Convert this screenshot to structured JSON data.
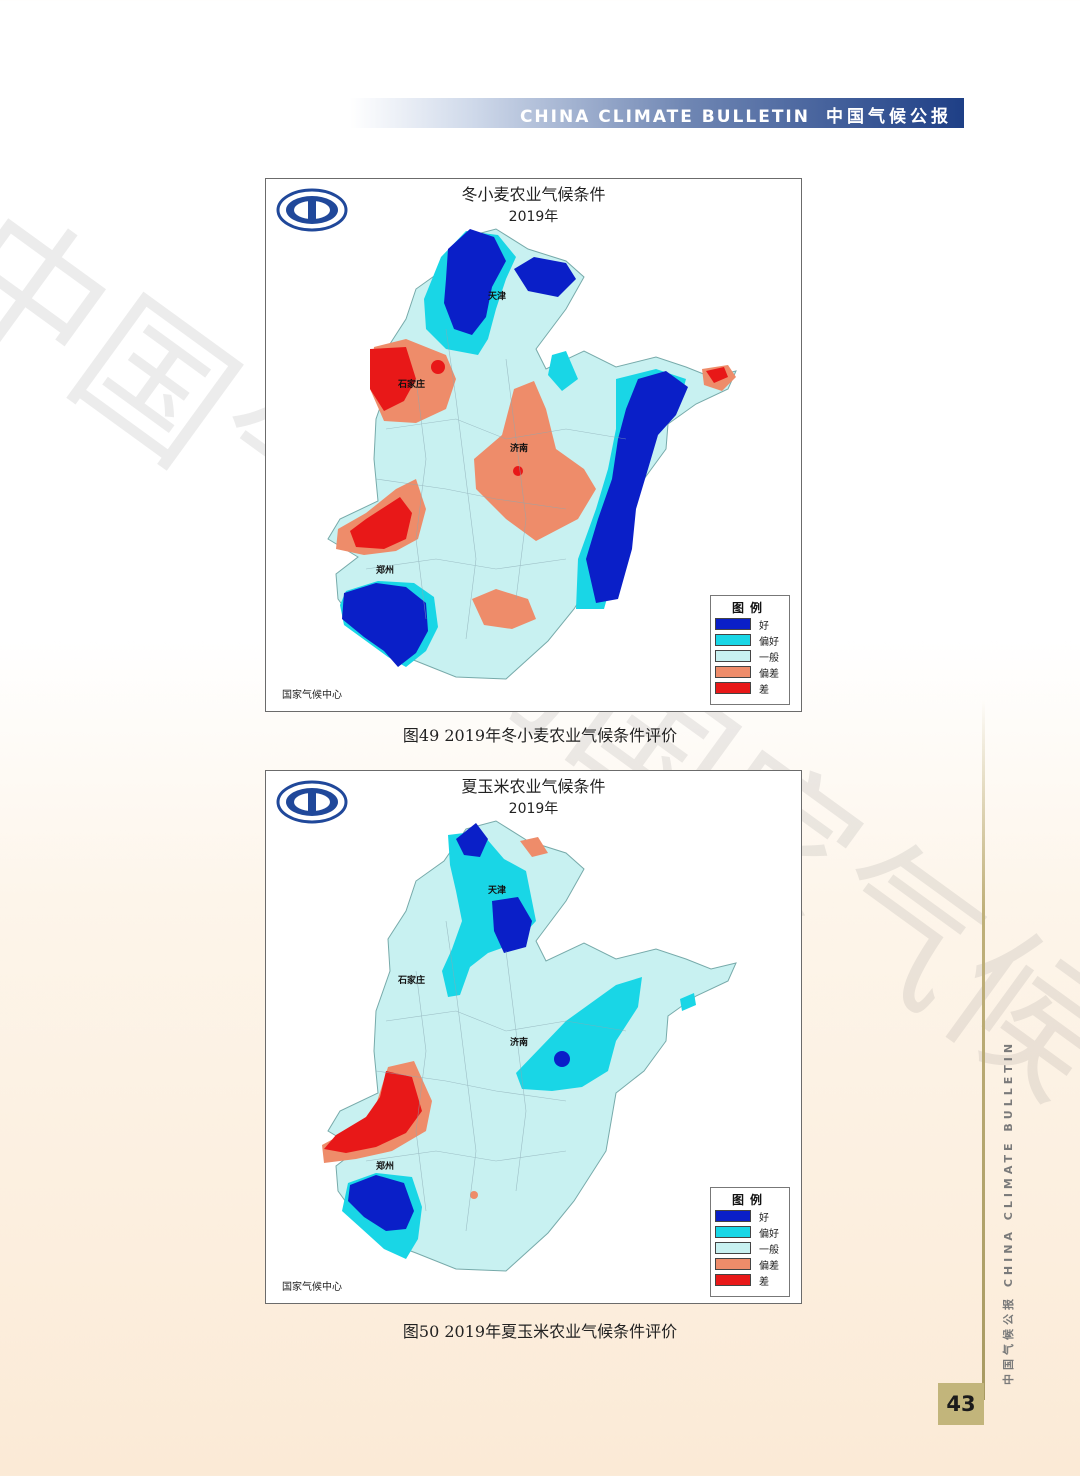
{
  "header": {
    "title_en": "CHINA CLIMATE BULLETIN",
    "title_cn": "中国气候公报"
  },
  "side": {
    "text": "中国气候公报  CHINA CLIMATE BULLETIN"
  },
  "page_number": "43",
  "watermark": "中国气象局国家气候中心",
  "figures": [
    {
      "title": "冬小麦农业气候条件",
      "year": "2019年",
      "credit": "国家气候中心",
      "cities": {
        "tianjin": "天津",
        "shijiazhuang": "石家庄",
        "jinan": "济南",
        "zhengzhou": "郑州"
      },
      "legend": {
        "title": "图例",
        "items": [
          {
            "label": "好",
            "color": "#0a1fc8"
          },
          {
            "label": "偏好",
            "color": "#19d6e6"
          },
          {
            "label": "一般",
            "color": "#c8f1f1"
          },
          {
            "label": "偏差",
            "color": "#ee8c6a"
          },
          {
            "label": "差",
            "color": "#e81818"
          }
        ]
      },
      "caption": "图49  2019年冬小麦农业气候条件评价"
    },
    {
      "title": "夏玉米农业气候条件",
      "year": "2019年",
      "credit": "国家气候中心",
      "cities": {
        "tianjin": "天津",
        "shijiazhuang": "石家庄",
        "jinan": "济南",
        "zhengzhou": "郑州"
      },
      "legend": {
        "title": "图例",
        "items": [
          {
            "label": "好",
            "color": "#0a1fc8"
          },
          {
            "label": "偏好",
            "color": "#19d6e6"
          },
          {
            "label": "一般",
            "color": "#c8f1f1"
          },
          {
            "label": "偏差",
            "color": "#ee8c6a"
          },
          {
            "label": "差",
            "color": "#e81818"
          }
        ]
      },
      "caption": "图50  2019年夏玉米农业气候条件评价"
    }
  ]
}
